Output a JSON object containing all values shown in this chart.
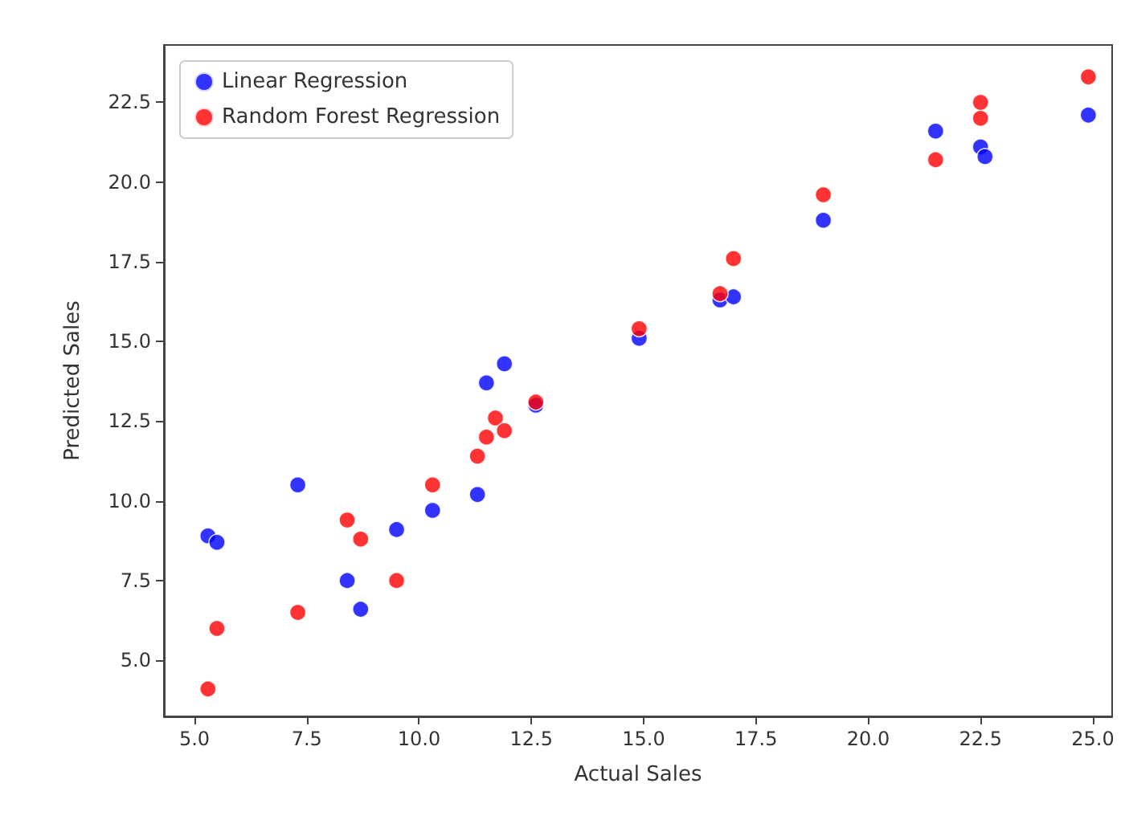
{
  "chart_data": {
    "type": "scatter",
    "xlabel": "Actual Sales",
    "ylabel": "Predicted Sales",
    "xlim": [
      4.32,
      25.43
    ],
    "ylim": [
      3.24,
      24.3
    ],
    "xticks": [
      {
        "value": 5,
        "label": "5.0"
      },
      {
        "value": 7.5,
        "label": "7.5"
      },
      {
        "value": 10,
        "label": "10.0"
      },
      {
        "value": 12.5,
        "label": "12.5"
      },
      {
        "value": 15,
        "label": "15.0"
      },
      {
        "value": 17.5,
        "label": "17.5"
      },
      {
        "value": 20,
        "label": "20.0"
      },
      {
        "value": 22.5,
        "label": "22.5"
      },
      {
        "value": 25,
        "label": "25.0"
      }
    ],
    "yticks": [
      {
        "value": 5,
        "label": "5.0"
      },
      {
        "value": 7.5,
        "label": "7.5"
      },
      {
        "value": 10,
        "label": "10.0"
      },
      {
        "value": 12.5,
        "label": "12.5"
      },
      {
        "value": 15,
        "label": "15.0"
      },
      {
        "value": 17.5,
        "label": "17.5"
      },
      {
        "value": 20,
        "label": "20.0"
      },
      {
        "value": 22.5,
        "label": "22.5"
      }
    ],
    "series": [
      {
        "name": "Linear Regression",
        "color": "#0000ff",
        "x": [
          5.3,
          5.5,
          7.3,
          8.4,
          8.7,
          9.5,
          10.3,
          11.3,
          11.5,
          11.7,
          11.9,
          12.6,
          14.9,
          16.7,
          17.0,
          19.0,
          21.5,
          22.5,
          22.6,
          24.9
        ],
        "values": [
          8.9,
          8.7,
          10.5,
          7.5,
          6.6,
          9.1,
          9.7,
          10.2,
          13.7,
          null,
          14.3,
          13.0,
          15.1,
          16.3,
          16.4,
          18.8,
          21.6,
          21.1,
          20.8,
          22.1
        ]
      },
      {
        "name": "Random Forest Regression",
        "color": "#ff0000",
        "x": [
          5.3,
          5.5,
          7.3,
          8.4,
          8.7,
          9.5,
          10.3,
          11.3,
          11.5,
          11.7,
          11.9,
          12.6,
          14.9,
          16.7,
          17.0,
          19.0,
          21.5,
          22.5,
          22.5,
          24.9
        ],
        "values": [
          4.1,
          6.0,
          6.5,
          9.4,
          8.8,
          7.5,
          10.5,
          11.4,
          12.0,
          12.6,
          12.2,
          13.1,
          15.4,
          16.5,
          17.6,
          19.6,
          20.7,
          22.0,
          22.5,
          23.3
        ]
      }
    ],
    "legend": "top left",
    "marker": "circle",
    "grid": false
  }
}
